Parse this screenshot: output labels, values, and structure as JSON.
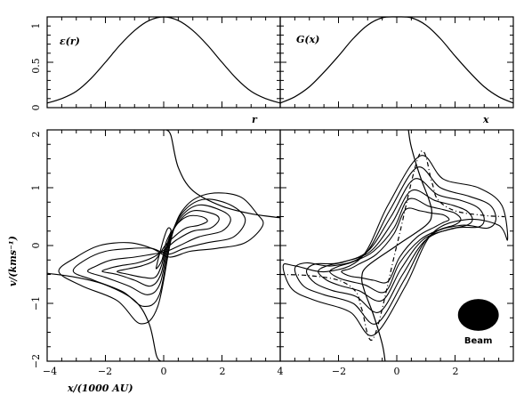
{
  "chart_data": [
    {
      "id": "panel-top-left",
      "type": "line",
      "title": "ε(r)",
      "xlabel": "r",
      "ylabel": "",
      "xlim": [
        -4,
        4
      ],
      "ylim": [
        0,
        1
      ],
      "yticks": [
        0,
        0.5,
        1
      ],
      "ytick_labels": [
        "0",
        "0.5",
        "1"
      ],
      "series": [
        {
          "x": [
            -4,
            -3.5,
            -3,
            -2.5,
            -2,
            -1.5,
            -1,
            -0.5,
            0,
            0.5,
            1,
            1.5,
            2,
            2.5,
            3,
            3.5,
            4
          ],
          "y": [
            0.05,
            0.1,
            0.18,
            0.32,
            0.5,
            0.69,
            0.85,
            0.96,
            1.0,
            0.96,
            0.85,
            0.69,
            0.5,
            0.32,
            0.18,
            0.1,
            0.05
          ]
        }
      ]
    },
    {
      "id": "panel-top-right",
      "type": "line",
      "title": "G(x)",
      "xlabel": "x",
      "ylabel": "",
      "xlim": [
        -4,
        4
      ],
      "ylim": [
        0,
        1
      ],
      "series": [
        {
          "x": [
            -4,
            -3.5,
            -3,
            -2.5,
            -2,
            -1.5,
            -1,
            -0.5,
            0,
            0.5,
            1,
            1.5,
            2,
            2.5,
            3,
            3.5,
            4
          ],
          "y": [
            0.05,
            0.12,
            0.23,
            0.39,
            0.57,
            0.76,
            0.91,
            0.99,
            1.0,
            0.99,
            0.91,
            0.76,
            0.57,
            0.39,
            0.23,
            0.12,
            0.05
          ]
        }
      ]
    },
    {
      "id": "panel-bottom-left",
      "type": "line",
      "xlabel": "x/(1000 AU)",
      "ylabel": "v/(kms⁻¹)",
      "xlim": [
        -4,
        4
      ],
      "ylim": [
        -2,
        2
      ],
      "xticks": [
        -4,
        -2,
        0,
        2,
        4
      ],
      "xtick_labels": [
        "−4",
        "−2",
        "0",
        "2",
        "4"
      ],
      "yticks": [
        -2,
        -1,
        0,
        1,
        2
      ],
      "ytick_labels": [
        "−2",
        "−1",
        "0",
        "1",
        "2"
      ],
      "rotation_curve": {
        "x": [
          -4,
          -3,
          -2,
          -1,
          -0.5,
          -0.25,
          -0.1,
          0,
          0.1,
          0.25,
          0.5,
          1,
          2,
          3,
          4
        ],
        "y": [
          -0.48,
          -0.55,
          -0.68,
          -0.95,
          -1.35,
          -1.9,
          -2.0,
          0,
          2.0,
          1.9,
          1.35,
          0.95,
          0.68,
          0.55,
          0.48
        ]
      },
      "contours": [
        {
          "level": 1,
          "points": [
            [
              -3.6,
              -0.45
            ],
            [
              -2.8,
              -0.7
            ],
            [
              -1.6,
              -0.95
            ],
            [
              -0.8,
              -1.35
            ],
            [
              -0.2,
              -1.05
            ],
            [
              0.3,
              0.2
            ],
            [
              0.8,
              0.7
            ],
            [
              1.6,
              0.9
            ],
            [
              2.6,
              0.85
            ],
            [
              3.2,
              0.55
            ],
            [
              3.4,
              0.35
            ],
            [
              2.8,
              0.05
            ],
            [
              1.8,
              -0.05
            ],
            [
              0.9,
              -0.1
            ],
            [
              0.2,
              -0.2
            ],
            [
              -0.4,
              -0.05
            ],
            [
              -1.2,
              0.05
            ],
            [
              -2.2,
              0.0
            ],
            [
              -3.0,
              -0.2
            ]
          ]
        },
        {
          "level": 2,
          "points": [
            [
              -3.1,
              -0.45
            ],
            [
              -2.4,
              -0.6
            ],
            [
              -1.4,
              -0.8
            ],
            [
              -0.7,
              -1.05
            ],
            [
              -0.15,
              -0.85
            ],
            [
              0.25,
              0.15
            ],
            [
              0.7,
              0.6
            ],
            [
              1.4,
              0.8
            ],
            [
              2.3,
              0.7
            ],
            [
              2.8,
              0.45
            ],
            [
              2.4,
              0.15
            ],
            [
              1.5,
              0.05
            ],
            [
              0.7,
              -0.05
            ],
            [
              0.15,
              -0.15
            ],
            [
              -0.4,
              -0.05
            ],
            [
              -1.1,
              -0.05
            ],
            [
              -2.0,
              -0.1
            ],
            [
              -2.7,
              -0.25
            ]
          ]
        },
        {
          "level": 3,
          "points": [
            [
              -2.6,
              -0.45
            ],
            [
              -2.0,
              -0.55
            ],
            [
              -1.2,
              -0.7
            ],
            [
              -0.55,
              -0.85
            ],
            [
              -0.12,
              -0.65
            ],
            [
              0.2,
              0.1
            ],
            [
              0.6,
              0.5
            ],
            [
              1.2,
              0.7
            ],
            [
              2.0,
              0.6
            ],
            [
              2.3,
              0.45
            ],
            [
              2.0,
              0.25
            ],
            [
              1.2,
              0.15
            ],
            [
              0.55,
              0.0
            ],
            [
              0.1,
              -0.1
            ],
            [
              -0.4,
              -0.15
            ],
            [
              -1.0,
              -0.2
            ],
            [
              -1.8,
              -0.25
            ],
            [
              -2.3,
              -0.35
            ]
          ]
        },
        {
          "level": 4,
          "points": [
            [
              -2.1,
              -0.45
            ],
            [
              -1.6,
              -0.5
            ],
            [
              -1.0,
              -0.6
            ],
            [
              -0.45,
              -0.7
            ],
            [
              -0.1,
              -0.5
            ],
            [
              0.15,
              0.05
            ],
            [
              0.5,
              0.4
            ],
            [
              1.0,
              0.6
            ],
            [
              1.7,
              0.55
            ],
            [
              1.9,
              0.45
            ],
            [
              1.6,
              0.3
            ],
            [
              1.0,
              0.25
            ],
            [
              0.45,
              0.1
            ],
            [
              0.08,
              -0.05
            ],
            [
              -0.35,
              -0.2
            ],
            [
              -0.9,
              -0.3
            ],
            [
              -1.5,
              -0.35
            ],
            [
              -1.9,
              -0.4
            ]
          ]
        },
        {
          "level": 5,
          "points": [
            [
              -1.6,
              -0.45
            ],
            [
              -1.2,
              -0.5
            ],
            [
              -0.7,
              -0.55
            ],
            [
              -0.3,
              -0.55
            ],
            [
              -0.08,
              -0.35
            ],
            [
              0.1,
              0.0
            ],
            [
              0.35,
              0.3
            ],
            [
              0.8,
              0.5
            ],
            [
              1.3,
              0.5
            ],
            [
              1.5,
              0.42
            ],
            [
              1.2,
              0.35
            ],
            [
              0.75,
              0.3
            ],
            [
              0.35,
              0.15
            ],
            [
              0.05,
              0.0
            ],
            [
              -0.3,
              -0.25
            ],
            [
              -0.75,
              -0.35
            ],
            [
              -1.2,
              -0.4
            ]
          ]
        },
        {
          "level": 6,
          "points": [
            [
              -0.25,
              -0.4
            ],
            [
              -0.06,
              -0.25
            ],
            [
              0.08,
              0.05
            ],
            [
              0.25,
              0.25
            ],
            [
              0.15,
              0.3
            ],
            [
              0.02,
              0.15
            ],
            [
              -0.12,
              -0.1
            ],
            [
              -0.22,
              -0.3
            ]
          ]
        }
      ]
    },
    {
      "id": "panel-bottom-right",
      "type": "line",
      "xlabel": "",
      "ylabel": "",
      "xlim": [
        -4,
        4
      ],
      "ylim": [
        -2,
        2
      ],
      "xticks": [
        -2,
        0,
        2
      ],
      "xtick_labels": [
        "−2",
        "0",
        "2"
      ],
      "rotation_curve": {
        "x": [
          -0.4,
          -0.5,
          -0.8,
          -1.1,
          -1.2,
          -1.0,
          0.0,
          1.0,
          1.2,
          1.1,
          0.8,
          0.5,
          0.4
        ],
        "y": [
          -2.0,
          -1.7,
          -1.2,
          -0.8,
          -0.55,
          -0.35,
          0.0,
          0.35,
          0.55,
          0.8,
          1.2,
          1.7,
          2.0
        ]
      },
      "model_curve": {
        "x": [
          -4,
          -3,
          -2,
          -1.4,
          -1.2,
          -0.8,
          0,
          0.8,
          1.2,
          1.4,
          2,
          3,
          3.7
        ],
        "y": [
          -0.5,
          -0.52,
          -0.6,
          -0.8,
          -1.1,
          -1.6,
          0,
          1.6,
          1.1,
          0.8,
          0.6,
          0.52,
          0.5
        ]
      },
      "contours": [
        {
          "level": 1,
          "points": [
            [
              -3.9,
              -0.35
            ],
            [
              -3.6,
              -0.75
            ],
            [
              -2.8,
              -0.95
            ],
            [
              -1.6,
              -1.15
            ],
            [
              -0.8,
              -1.55
            ],
            [
              0.3,
              -0.7
            ],
            [
              1.2,
              0.2
            ],
            [
              2.4,
              0.45
            ],
            [
              3.5,
              0.35
            ],
            [
              3.8,
              0.1
            ],
            [
              3.6,
              0.7
            ],
            [
              2.8,
              1.0
            ],
            [
              1.6,
              1.15
            ],
            [
              0.8,
              1.55
            ],
            [
              -0.3,
              0.7
            ],
            [
              -1.2,
              -0.2
            ],
            [
              -2.4,
              -0.45
            ],
            [
              -3.5,
              -0.35
            ]
          ]
        },
        {
          "level": 2,
          "points": [
            [
              -3.5,
              -0.4
            ],
            [
              -3.2,
              -0.7
            ],
            [
              -2.5,
              -0.85
            ],
            [
              -1.5,
              -1.0
            ],
            [
              -0.7,
              -1.35
            ],
            [
              0.25,
              -0.6
            ],
            [
              1.1,
              0.15
            ],
            [
              2.2,
              0.35
            ],
            [
              3.1,
              0.3
            ],
            [
              3.4,
              0.45
            ],
            [
              3.2,
              0.7
            ],
            [
              2.5,
              0.85
            ],
            [
              1.5,
              1.0
            ],
            [
              0.7,
              1.35
            ],
            [
              -0.25,
              0.6
            ],
            [
              -1.1,
              -0.15
            ],
            [
              -2.2,
              -0.35
            ],
            [
              -3.1,
              -0.3
            ]
          ]
        },
        {
          "level": 3,
          "points": [
            [
              -3.1,
              -0.45
            ],
            [
              -2.8,
              -0.65
            ],
            [
              -2.2,
              -0.78
            ],
            [
              -1.4,
              -0.88
            ],
            [
              -0.6,
              -1.15
            ],
            [
              0.2,
              -0.5
            ],
            [
              1.0,
              0.1
            ],
            [
              2.0,
              0.3
            ],
            [
              2.8,
              0.32
            ],
            [
              3.0,
              0.45
            ],
            [
              2.8,
              0.65
            ],
            [
              2.2,
              0.78
            ],
            [
              1.4,
              0.88
            ],
            [
              0.6,
              1.15
            ],
            [
              -0.2,
              0.5
            ],
            [
              -1.0,
              -0.1
            ],
            [
              -2.0,
              -0.3
            ],
            [
              -2.8,
              -0.32
            ]
          ]
        },
        {
          "level": 4,
          "points": [
            [
              -2.7,
              -0.45
            ],
            [
              -2.4,
              -0.6
            ],
            [
              -1.9,
              -0.7
            ],
            [
              -1.3,
              -0.78
            ],
            [
              -0.5,
              -0.95
            ],
            [
              0.15,
              -0.4
            ],
            [
              0.9,
              0.1
            ],
            [
              1.8,
              0.28
            ],
            [
              2.4,
              0.35
            ],
            [
              2.6,
              0.45
            ],
            [
              2.4,
              0.6
            ],
            [
              1.9,
              0.7
            ],
            [
              1.3,
              0.78
            ],
            [
              0.5,
              0.95
            ],
            [
              -0.15,
              0.4
            ],
            [
              -0.9,
              -0.1
            ],
            [
              -1.8,
              -0.28
            ],
            [
              -2.4,
              -0.35
            ]
          ]
        },
        {
          "level": 5,
          "points": [
            [
              -2.3,
              -0.45
            ],
            [
              -2.0,
              -0.56
            ],
            [
              -1.6,
              -0.62
            ],
            [
              -1.1,
              -0.68
            ],
            [
              -0.4,
              -0.8
            ],
            [
              0.1,
              -0.3
            ],
            [
              0.8,
              0.1
            ],
            [
              1.5,
              0.28
            ],
            [
              2.0,
              0.36
            ],
            [
              2.2,
              0.45
            ],
            [
              2.0,
              0.56
            ],
            [
              1.6,
              0.62
            ],
            [
              1.1,
              0.68
            ],
            [
              0.4,
              0.8
            ],
            [
              -0.1,
              0.3
            ],
            [
              -0.8,
              -0.1
            ],
            [
              -1.5,
              -0.28
            ],
            [
              -2.0,
              -0.36
            ]
          ]
        },
        {
          "level": 6,
          "points": [
            [
              -1.9,
              -0.45
            ],
            [
              -1.6,
              -0.53
            ],
            [
              -1.2,
              -0.56
            ],
            [
              -0.8,
              -0.6
            ],
            [
              -0.3,
              -0.62
            ],
            [
              0.1,
              -0.2
            ],
            [
              0.7,
              0.15
            ],
            [
              1.3,
              0.32
            ],
            [
              1.6,
              0.4
            ],
            [
              1.8,
              0.45
            ],
            [
              1.6,
              0.53
            ],
            [
              1.2,
              0.56
            ],
            [
              0.8,
              0.6
            ],
            [
              0.3,
              0.62
            ],
            [
              -0.1,
              0.2
            ],
            [
              -0.7,
              -0.15
            ],
            [
              -1.3,
              -0.32
            ],
            [
              -1.6,
              -0.4
            ]
          ]
        }
      ],
      "beam": {
        "label": "Beam",
        "x": 2.8,
        "y": -1.2,
        "width": 1.4,
        "height": 0.55
      }
    }
  ]
}
